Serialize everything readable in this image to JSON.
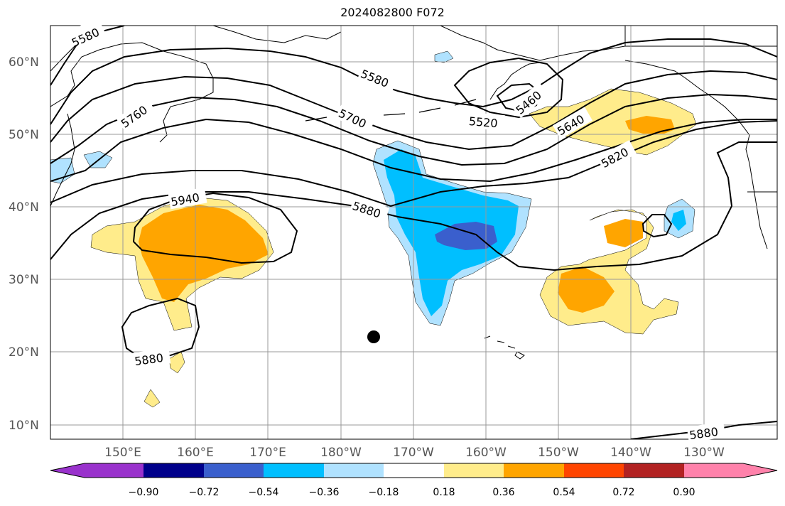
{
  "title": "2024082800 F072",
  "map": {
    "lat_ticks": [
      "10°N",
      "20°N",
      "30°N",
      "40°N",
      "50°N",
      "60°N"
    ],
    "lon_ticks": [
      "150°E",
      "160°E",
      "170°E",
      "180°W",
      "170°W",
      "160°W",
      "150°W",
      "140°W",
      "130°W"
    ],
    "contour_labels": [
      "5580",
      "5580",
      "5520",
      "5460",
      "5640",
      "5700",
      "5760",
      "5820",
      "5880",
      "5940",
      "5880",
      "5880"
    ],
    "colorbar_ticks": [
      "−0.90",
      "−0.72",
      "−0.54",
      "−0.36",
      "−0.18",
      "0.18",
      "0.36",
      "0.54",
      "0.72",
      "0.90"
    ],
    "colorbar_colors": [
      "#9932cc",
      "#00008b",
      "#3a5fcd",
      "#00bfff",
      "#b0e2ff",
      "#ffffff",
      "#ffec8b",
      "#ffa500",
      "#ff4500",
      "#b22222",
      "#ff82ab"
    ],
    "fill_colors": {
      "light_yellow": "#ffec8b",
      "orange": "#ffa500",
      "light_blue": "#b0e2ff",
      "sky_blue": "#00bfff",
      "royal_blue": "#3a5fcd"
    }
  }
}
